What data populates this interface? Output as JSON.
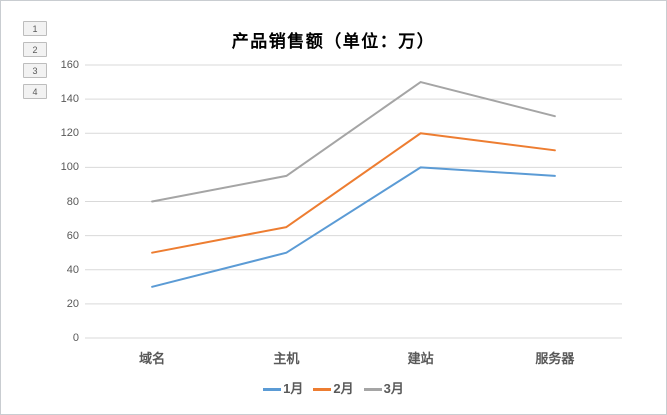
{
  "outline_buttons": {
    "labels": [
      "1",
      "2",
      "3",
      "4"
    ]
  },
  "chart_data": {
    "type": "line",
    "title": "产品销售额（单位：万）",
    "categories": [
      "域名",
      "主机",
      "建站",
      "服务器"
    ],
    "series": [
      {
        "name": "1月",
        "color": "#5B9BD5",
        "values": [
          30,
          50,
          100,
          95
        ]
      },
      {
        "name": "2月",
        "color": "#ED7D31",
        "values": [
          50,
          65,
          120,
          110
        ]
      },
      {
        "name": "3月",
        "color": "#A5A5A5",
        "values": [
          80,
          95,
          150,
          130
        ]
      }
    ],
    "xlabel": "",
    "ylabel": "",
    "ylim": [
      0,
      160
    ],
    "yticks": [
      0,
      20,
      40,
      60,
      80,
      100,
      120,
      140,
      160
    ],
    "grid": true,
    "legend_position": "bottom",
    "colors": {
      "gridline": "#D9D9D9",
      "tick_label": "#595959",
      "category_label": "#595959",
      "title": "#000000",
      "frame_border": "#C9CDD1",
      "button_bg": "#F2F2F2",
      "button_border": "#BDBDBD"
    }
  }
}
